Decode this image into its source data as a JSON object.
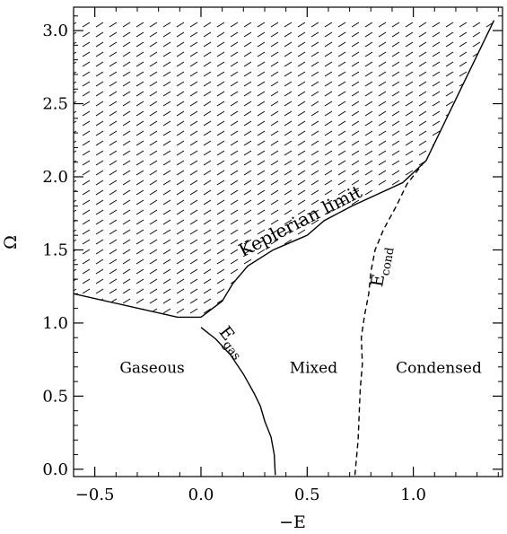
{
  "chart_data": {
    "type": "line",
    "xlabel": "−E",
    "ylabel": "Ω",
    "xlim": [
      -0.6,
      1.42
    ],
    "ylim": [
      -0.05,
      3.16
    ],
    "x_ticks": [
      -0.5,
      0.0,
      0.5,
      1.0
    ],
    "x_tick_labels": [
      "−0.5",
      "0.0",
      "0.5",
      "1.0"
    ],
    "y_ticks": [
      0.0,
      0.5,
      1.0,
      1.5,
      2.0,
      2.5,
      3.0
    ],
    "y_tick_labels": [
      "0.0",
      "0.5",
      "1.0",
      "1.5",
      "2.0",
      "2.5",
      "3.0"
    ],
    "grid": false,
    "series": [
      {
        "label": "Keplerian limit",
        "style": "solid",
        "x": [
          -0.6,
          -0.11,
          0.0,
          0.1,
          0.15,
          0.22,
          0.34,
          0.42,
          0.5,
          0.58,
          0.71,
          0.95,
          1.06,
          1.38
        ],
        "y": [
          1.2,
          1.04,
          1.04,
          1.15,
          1.27,
          1.39,
          1.5,
          1.55,
          1.6,
          1.7,
          1.8,
          1.96,
          2.11,
          3.07
        ]
      },
      {
        "label": "E_gas",
        "style": "solid",
        "x": [
          0.0,
          0.07,
          0.14,
          0.2,
          0.25,
          0.28,
          0.3,
          0.33,
          0.345,
          0.35
        ],
        "y": [
          0.97,
          0.89,
          0.78,
          0.65,
          0.52,
          0.43,
          0.33,
          0.22,
          0.1,
          -0.04
        ]
      },
      {
        "label": "E_cond",
        "style": "dashed",
        "x": [
          0.725,
          0.74,
          0.745,
          0.75,
          0.76,
          0.755,
          0.77,
          0.79,
          0.8,
          0.82,
          0.86,
          0.92,
          0.97,
          1.04
        ],
        "y": [
          -0.04,
          0.2,
          0.38,
          0.55,
          0.72,
          0.9,
          1.05,
          1.2,
          1.35,
          1.5,
          1.64,
          1.8,
          1.95,
          2.08
        ]
      }
    ],
    "shaded_region": {
      "description": "dashed hatch above the Keplerian limit",
      "bounded_by": "Keplerian limit",
      "top_y": 3.07
    },
    "annotations": [
      {
        "id": "kepler",
        "text": "Keplerian limit",
        "x": 0.48,
        "y": 1.66,
        "rotate": -27
      },
      {
        "id": "egas",
        "text": "E",
        "sub": "gas",
        "x": 0.13,
        "y": 0.85,
        "rotate": 52
      },
      {
        "id": "econd",
        "text": "E",
        "sub": "cond",
        "x": 0.87,
        "y": 1.38,
        "rotate": -80
      },
      {
        "id": "gaseous",
        "text": "Gaseous",
        "x": -0.23,
        "y": 0.66,
        "rotate": 0
      },
      {
        "id": "mixed",
        "text": "Mixed",
        "x": 0.53,
        "y": 0.66,
        "rotate": 0
      },
      {
        "id": "condensed",
        "text": "Condensed",
        "x": 1.12,
        "y": 0.66,
        "rotate": 0
      }
    ]
  }
}
